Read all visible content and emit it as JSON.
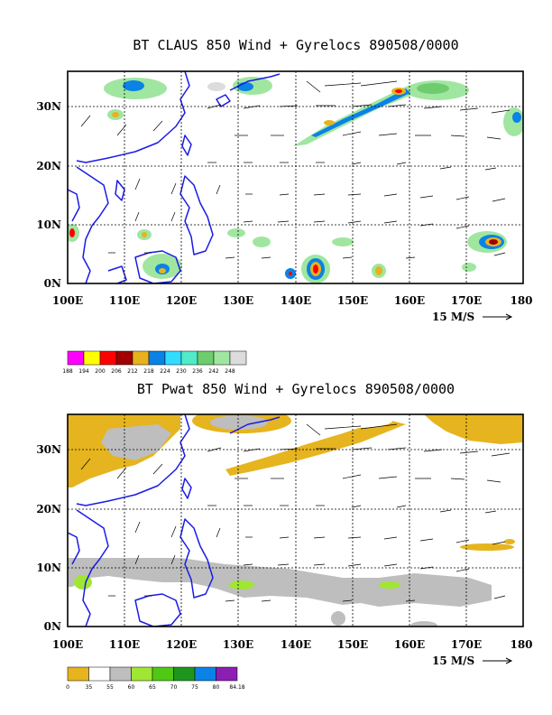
{
  "chart_data": [
    {
      "type": "heatmap",
      "title": "BT CLAUS 850 Wind + Gyrelocs 890508/0000",
      "x_tick_labels": [
        "100E",
        "110E",
        "120E",
        "130E",
        "140E",
        "150E",
        "160E",
        "170E",
        "180"
      ],
      "y_tick_labels": [
        "0N",
        "10N",
        "20N",
        "30N"
      ],
      "xlim": [
        100,
        180
      ],
      "ylim": [
        0,
        36
      ],
      "grid": true,
      "vector_reference": "15 M/S",
      "colorbar": {
        "labels": [
          "188",
          "194",
          "200",
          "206",
          "212",
          "218",
          "224",
          "230",
          "236",
          "242",
          "248"
        ],
        "colors": [
          "#ff00ff",
          "#ffff00",
          "#ff0000",
          "#a00000",
          "#e6b21e",
          "#0a82e6",
          "#32dcff",
          "#50ebc8",
          "#6ecc6e",
          "#a0e6a0",
          "#dcdcdc"
        ]
      }
    },
    {
      "type": "heatmap",
      "title": "BT Pwat 850 Wind + Gyrelocs 890508/0000",
      "x_tick_labels": [
        "100E",
        "110E",
        "120E",
        "130E",
        "140E",
        "150E",
        "160E",
        "170E",
        "180"
      ],
      "y_tick_labels": [
        "0N",
        "10N",
        "20N",
        "30N"
      ],
      "xlim": [
        100,
        180
      ],
      "ylim": [
        0,
        36
      ],
      "grid": true,
      "vector_reference": "15 M/S",
      "colorbar": {
        "labels": [
          "0",
          "35",
          "55",
          "60",
          "65",
          "70",
          "75",
          "80",
          "84.18"
        ],
        "colors": [
          "#e6b41e",
          "#ffffff",
          "#bebebe",
          "#a0e632",
          "#50c814",
          "#1e961e",
          "#0a82e6",
          "#8c1eb4"
        ]
      }
    }
  ]
}
